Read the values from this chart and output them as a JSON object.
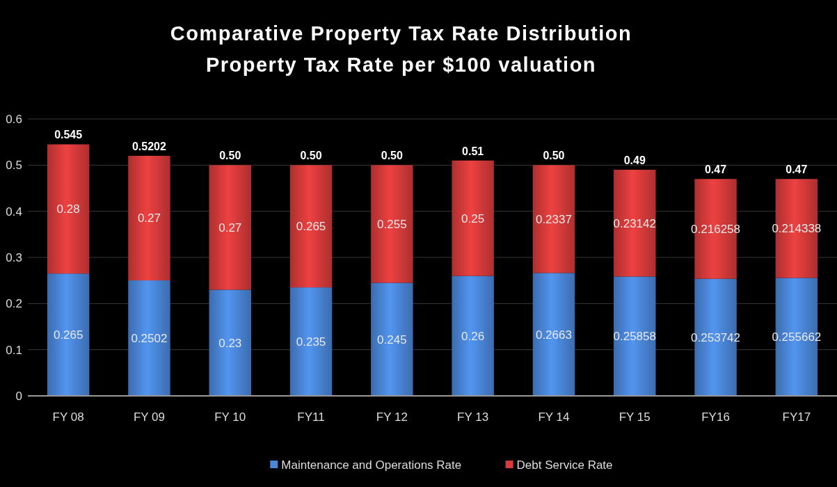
{
  "chart_data": {
    "type": "bar",
    "title": "Comparative Property Tax Rate Distribution",
    "subtitle": "Property Tax Rate per $100 valuation",
    "categories": [
      "FY 08",
      "FY 09",
      "FY 10",
      "FY11",
      "FY 12",
      "FY 13",
      "FY 14",
      "FY 15",
      "FY16",
      "FY17"
    ],
    "series": [
      {
        "name": "Maintenance and Operations Rate",
        "color": "#4a86d8",
        "values": [
          0.265,
          0.2502,
          0.23,
          0.235,
          0.245,
          0.26,
          0.2663,
          0.25858,
          0.253742,
          0.255662
        ]
      },
      {
        "name": "Debt Service Rate",
        "color": "#d63a3a",
        "values": [
          0.28,
          0.27,
          0.27,
          0.265,
          0.255,
          0.25,
          0.2337,
          0.23142,
          0.216258,
          0.214338
        ]
      }
    ],
    "stacked": true,
    "data_labels": true,
    "totals": [
      "0.545",
      "0.5202",
      "0.50",
      "0.50",
      "0.50",
      "0.51",
      "0.50",
      "0.49",
      "0.47",
      "0.47"
    ],
    "ylim": [
      0,
      0.6
    ],
    "yticks": [
      0,
      0.1,
      0.2,
      0.3,
      0.4,
      0.5,
      0.6
    ],
    "grid": "y",
    "legend": "bottom"
  }
}
